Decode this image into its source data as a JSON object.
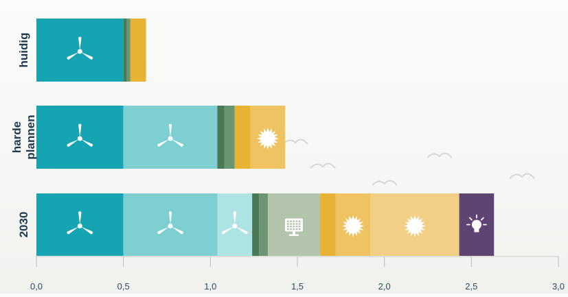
{
  "chart_data": {
    "type": "bar",
    "orientation": "horizontal",
    "stacked": true,
    "categories": [
      {
        "lines": [
          "huidig"
        ]
      },
      {
        "lines": [
          "harde",
          "plannen"
        ]
      },
      {
        "lines": [
          "2030"
        ]
      }
    ],
    "xlim": [
      0,
      3.0
    ],
    "xticks": [
      "0,0",
      "0,5",
      "1,0",
      "1,5",
      "2,0",
      "2,5",
      "3,0"
    ],
    "xtick_values": [
      0,
      0.5,
      1.0,
      1.5,
      2.0,
      2.5,
      3.0
    ],
    "grid": false,
    "legend": "none",
    "bars": [
      {
        "category": "huidig",
        "segments": [
          {
            "start": 0.0,
            "value": 0.5,
            "color": "#16a4b2",
            "icon": "wind-turbine-icon"
          },
          {
            "start": 0.5,
            "value": 0.02,
            "color": "#4a7a55",
            "icon": ""
          },
          {
            "start": 0.52,
            "value": 0.02,
            "color": "#6b9470",
            "icon": ""
          },
          {
            "start": 0.54,
            "value": 0.09,
            "color": "#e8b335",
            "icon": ""
          }
        ]
      },
      {
        "category": "harde plannen",
        "segments": [
          {
            "start": 0.0,
            "value": 0.5,
            "color": "#16a4b2",
            "icon": "wind-turbine-icon"
          },
          {
            "start": 0.5,
            "value": 0.54,
            "color": "#7dcfd2",
            "icon": "wind-turbine-icon"
          },
          {
            "start": 1.04,
            "value": 0.04,
            "color": "#4a7a55",
            "icon": ""
          },
          {
            "start": 1.08,
            "value": 0.06,
            "color": "#6b9470",
            "icon": ""
          },
          {
            "start": 1.14,
            "value": 0.09,
            "color": "#e8b335",
            "icon": ""
          },
          {
            "start": 1.23,
            "value": 0.2,
            "color": "#efc262",
            "icon": "sun-icon"
          }
        ]
      },
      {
        "category": "2030",
        "segments": [
          {
            "start": 0.0,
            "value": 0.5,
            "color": "#16a4b2",
            "icon": "wind-turbine-icon"
          },
          {
            "start": 0.5,
            "value": 0.54,
            "color": "#7dcfd2",
            "icon": "wind-turbine-icon"
          },
          {
            "start": 1.04,
            "value": 0.2,
            "color": "#aee3e4",
            "icon": "wind-turbine-icon"
          },
          {
            "start": 1.24,
            "value": 0.04,
            "color": "#4a7a55",
            "icon": ""
          },
          {
            "start": 1.28,
            "value": 0.05,
            "color": "#6b9470",
            "icon": ""
          },
          {
            "start": 1.33,
            "value": 0.3,
            "color": "#b2c4ab",
            "icon": "server-icon"
          },
          {
            "start": 1.63,
            "value": 0.09,
            "color": "#e8b335",
            "icon": ""
          },
          {
            "start": 1.72,
            "value": 0.2,
            "color": "#efc262",
            "icon": "sun-icon"
          },
          {
            "start": 1.92,
            "value": 0.51,
            "color": "#f2cf85",
            "icon": "sun-icon"
          },
          {
            "start": 2.43,
            "value": 0.2,
            "color": "#5e4472",
            "icon": "lightbulb-icon"
          }
        ]
      }
    ]
  }
}
